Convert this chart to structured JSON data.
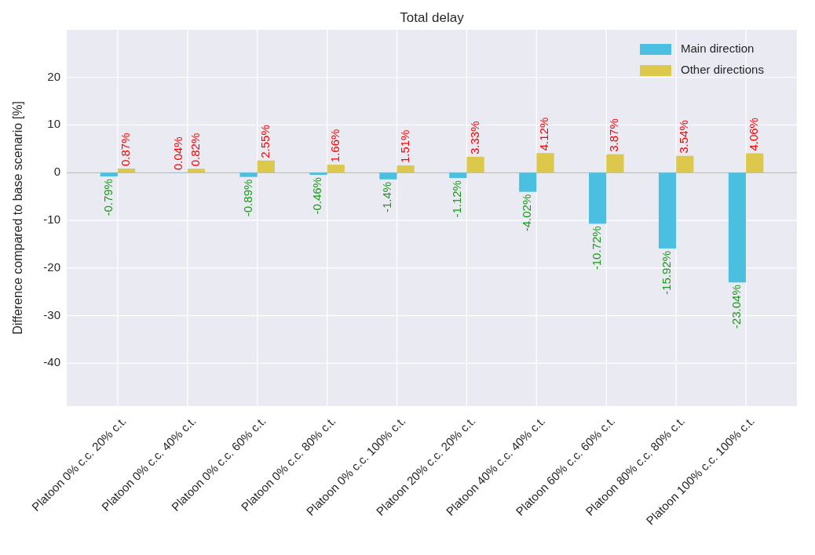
{
  "chart_data": {
    "type": "bar",
    "title": "Total delay",
    "ylabel": "Difference compared to base scenario [%]",
    "categories": [
      "Platoon 0% c.c. 20% c.t.",
      "Platoon 0% c.c. 40% c.t.",
      "Platoon 0% c.c. 60% c.t.",
      "Platoon 0% c.c. 80% c.t.",
      "Platoon 0% c.c. 100% c.t.",
      "Platoon 20% c.c. 20% c.t.",
      "Platoon 40% c.c. 40% c.t.",
      "Platoon 60% c.c. 60% c.t.",
      "Platoon 80% c.c. 80% c.t.",
      "Platoon 100% c.c. 100% c.t."
    ],
    "series": [
      {
        "name": "Main direction",
        "color": "#4bbfe0",
        "values": [
          -0.79,
          0.04,
          -0.89,
          -0.46,
          -1.4,
          -1.12,
          -4.02,
          -10.72,
          -15.92,
          -23.04
        ],
        "value_labels": [
          "-0.79%",
          "0.04%",
          "-0.89%",
          "-0.46%",
          "-1.4%",
          "-1.12%",
          "-4.02%",
          "-10.72%",
          "-15.92%",
          "-23.04%"
        ]
      },
      {
        "name": "Other directions",
        "color": "#dcc84a",
        "values": [
          0.87,
          0.82,
          2.55,
          1.66,
          1.51,
          3.33,
          4.12,
          3.87,
          3.54,
          4.06
        ],
        "value_labels": [
          "0.87%",
          "0.82%",
          "2.55%",
          "1.66%",
          "1.51%",
          "3.33%",
          "4.12%",
          "3.87%",
          "3.54%",
          "4.06%"
        ]
      }
    ],
    "ylim": [
      -49,
      30
    ],
    "yticks": [
      -40,
      -30,
      -20,
      -10,
      0,
      10,
      20
    ],
    "ref_lines": [
      {
        "axis": "y",
        "value": 0,
        "color": "#c0c0c0"
      }
    ],
    "grid": true,
    "legend": "top right"
  }
}
